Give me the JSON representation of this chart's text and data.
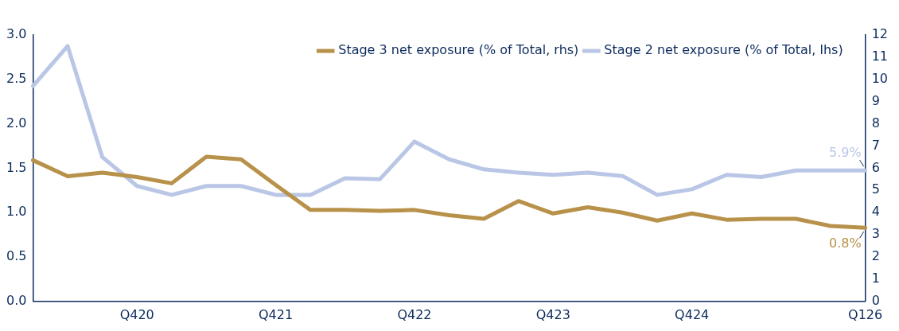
{
  "chart_data": {
    "type": "line",
    "categories": [
      null,
      null,
      null,
      "Q420",
      null,
      null,
      null,
      "Q421",
      null,
      null,
      null,
      "Q422",
      null,
      null,
      null,
      "Q423",
      null,
      null,
      null,
      "Q424",
      null,
      null,
      null,
      null,
      "Q126"
    ],
    "series": [
      {
        "name": "Stage 3 net exposure (% of Total, rhs)",
        "color": "#b8914a",
        "axis": "y",
        "values": [
          1.59,
          1.41,
          1.45,
          1.4,
          1.33,
          1.63,
          1.6,
          1.31,
          1.03,
          1.03,
          1.02,
          1.03,
          0.97,
          0.93,
          1.13,
          0.99,
          1.06,
          1.0,
          0.91,
          0.99,
          0.92,
          0.93,
          0.93,
          0.85,
          0.83
        ],
        "value_labels": [
          null,
          null,
          null,
          null,
          null,
          null,
          null,
          null,
          null,
          null,
          null,
          null,
          null,
          null,
          null,
          null,
          null,
          null,
          null,
          null,
          null,
          null,
          null,
          null,
          "0.8%"
        ]
      },
      {
        "name": "Stage 2 net exposure (% of Total, lhs)",
        "color": "#b9c6e6",
        "axis": "y2",
        "values": [
          9.7,
          11.5,
          6.5,
          5.2,
          4.8,
          5.2,
          5.2,
          4.8,
          4.8,
          5.55,
          5.5,
          7.2,
          6.4,
          5.95,
          5.8,
          5.7,
          5.8,
          5.65,
          4.8,
          5.05,
          5.7,
          5.6,
          5.9,
          5.9,
          5.9
        ],
        "value_labels": [
          null,
          null,
          null,
          null,
          null,
          null,
          null,
          null,
          null,
          null,
          null,
          null,
          null,
          null,
          null,
          null,
          null,
          null,
          null,
          null,
          null,
          null,
          null,
          null,
          "5.9%"
        ]
      }
    ],
    "ylim": [
      0,
      3
    ],
    "yticks": [
      "0.0",
      "0.5",
      "1.0",
      "1.5",
      "2.0",
      "2.5",
      "3.0"
    ],
    "y2lim": [
      0,
      12
    ],
    "y2ticks": [
      0,
      1,
      2,
      3,
      4,
      5,
      6,
      7,
      8,
      9,
      10,
      11,
      12
    ],
    "grid": false,
    "legend": "top right",
    "marker": "none",
    "line_style": "solid"
  }
}
